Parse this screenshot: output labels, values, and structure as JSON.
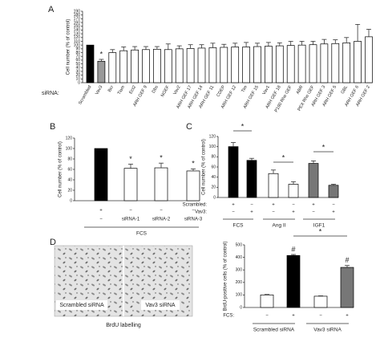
{
  "chart_data": [
    {
      "type": "bar",
      "panel_label": "A",
      "y_label": "Cell number (% of control)",
      "row_label": "siRNA:",
      "categories": [
        "Scrambled",
        "Vav3",
        "Bcr",
        "Tiam",
        "Ect2",
        "ARH GEF 9",
        "Dbs",
        "NGEF",
        "Vav2",
        "ARH GEF 17",
        "ARH GEF 14",
        "ARH GEF 11",
        "CDEP",
        "ARH GEF 12",
        "Tim",
        "ARH GEF 15",
        "Vav1",
        "ARH GEF 18",
        "P190 Rho GEF",
        "ABR",
        "PEX Rho GEF",
        "ARH GEF 3",
        "ARH GEF 5",
        "GBL",
        "ARH GEF 6",
        "ARH GEF 2"
      ],
      "values": [
        100,
        57,
        80,
        85,
        87,
        88,
        89,
        88,
        90,
        91,
        92,
        93,
        94,
        95,
        95,
        96,
        97,
        98,
        99,
        100,
        101,
        103,
        104,
        106,
        110,
        122
      ],
      "errors": [
        null,
        5,
        8,
        10,
        9,
        8,
        7,
        15,
        8,
        10,
        9,
        12,
        8,
        10,
        12,
        9,
        10,
        8,
        11,
        10,
        9,
        12,
        10,
        14,
        45,
        20
      ],
      "colors": [
        "#000000",
        "#9a9a9a",
        "#ffffff",
        "#ffffff",
        "#ffffff",
        "#ffffff",
        "#ffffff",
        "#ffffff",
        "#ffffff",
        "#ffffff",
        "#ffffff",
        "#ffffff",
        "#ffffff",
        "#ffffff",
        "#ffffff",
        "#ffffff",
        "#ffffff",
        "#ffffff",
        "#ffffff",
        "#ffffff",
        "#ffffff",
        "#ffffff",
        "#ffffff",
        "#ffffff",
        "#ffffff",
        "#ffffff"
      ],
      "markers": [
        null,
        "*",
        null,
        null,
        null,
        null,
        null,
        null,
        null,
        null,
        null,
        null,
        null,
        null,
        null,
        null,
        null,
        null,
        null,
        null,
        null,
        null,
        null,
        null,
        null,
        null
      ],
      "ylim": [
        0,
        190
      ],
      "yticks": [
        0,
        10,
        20,
        30,
        40,
        50,
        60,
        70,
        80,
        90,
        100,
        110,
        120,
        130,
        140,
        150,
        160,
        170,
        180,
        190
      ]
    },
    {
      "type": "bar",
      "panel_label": "B",
      "y_label": "Cell number (% of control)",
      "values": [
        100,
        62,
        63,
        57
      ],
      "errors": [
        null,
        8,
        9,
        4
      ],
      "colors": [
        "#000000",
        "#ffffff",
        "#ffffff",
        "#ffffff"
      ],
      "markers": [
        null,
        "*",
        "*",
        "*"
      ],
      "condition_rows": [
        {
          "values": [
            "+",
            "−",
            "−",
            "−"
          ]
        },
        {
          "values": [
            "−",
            "siRNA-1",
            "siRNA-2",
            "siRNA-3"
          ]
        }
      ],
      "groups": [
        "FCS"
      ],
      "ylim": [
        0,
        120
      ],
      "yticks": [
        0,
        20,
        40,
        60,
        80,
        100,
        120
      ]
    },
    {
      "type": "bar",
      "panel_label": "C",
      "y_label": "Cell number (% of control)",
      "values": [
        100,
        73,
        47,
        26,
        67,
        24
      ],
      "errors": [
        8,
        4,
        7,
        5,
        5,
        2
      ],
      "colors": [
        "#000000",
        "#000000",
        "#ffffff",
        "#ffffff",
        "#777777",
        "#777777"
      ],
      "annotations": [
        "*",
        "*",
        "*"
      ],
      "condition_rows": [
        {
          "name": "Scrambled:",
          "values": [
            "+",
            "−",
            "+",
            "−",
            "+",
            "−"
          ]
        },
        {
          "name": "Vav3:",
          "values": [
            "−",
            "+",
            "−",
            "+",
            "−",
            "+"
          ]
        }
      ],
      "groups": [
        "FCS",
        "Ang II",
        "IGF1"
      ],
      "ylim": [
        0,
        120
      ],
      "yticks": [
        0,
        20,
        40,
        60,
        80,
        100,
        120
      ]
    },
    {
      "type": "bar",
      "panel_label": "D",
      "y_label": "BrdU-positive cells (% of control)",
      "values": [
        100,
        415,
        90,
        320
      ],
      "errors": [
        4,
        8,
        3,
        15
      ],
      "colors": [
        "#ffffff",
        "#000000",
        "#ffffff",
        "#777777"
      ],
      "markers": [
        null,
        "#",
        null,
        "#"
      ],
      "annotations": [
        "*"
      ],
      "condition_rows": [
        {
          "name": "FCS:",
          "values": [
            "−",
            "+",
            "−",
            "+"
          ]
        }
      ],
      "groups": [
        "Scrambled siRNA",
        "Vav3 siRNA"
      ],
      "ylim": [
        0,
        500
      ],
      "yticks": [
        0,
        100,
        200,
        300,
        400,
        500
      ]
    }
  ],
  "image_panel": {
    "labels": [
      "Scrambled siRNA",
      "Vav3 siRNA"
    ],
    "caption": "BrdU labelling"
  }
}
